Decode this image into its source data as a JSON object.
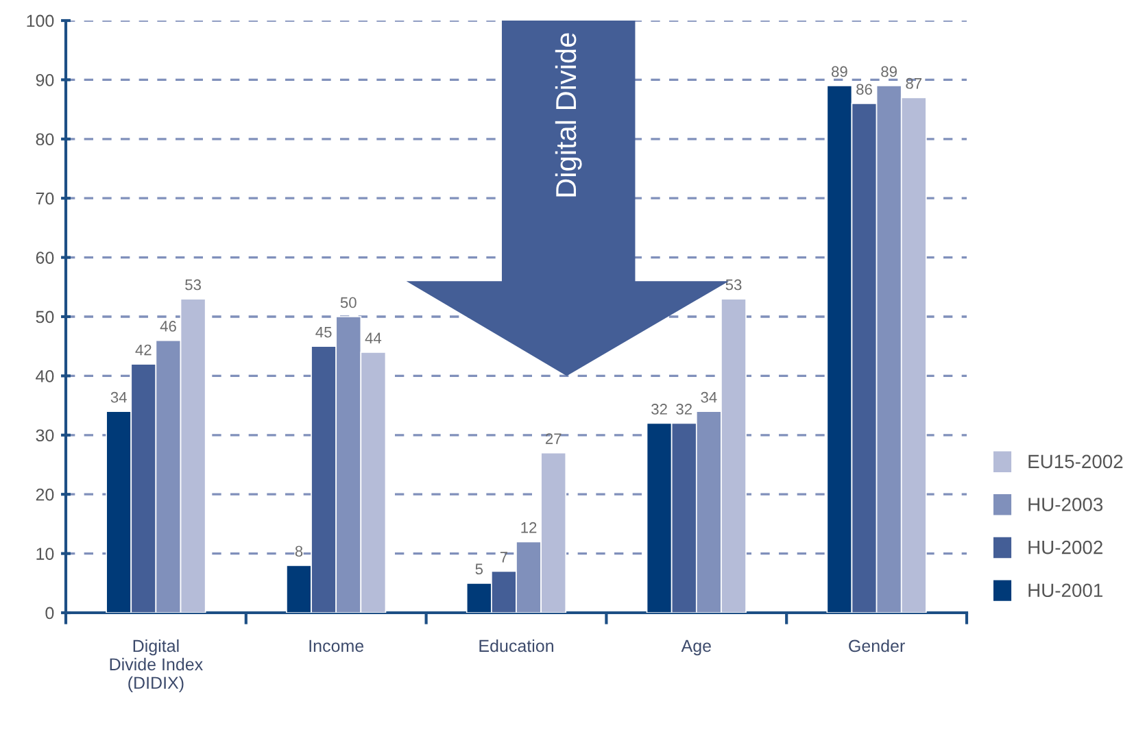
{
  "chart_data": {
    "type": "bar",
    "categories": [
      "Digital\nDivide Index\n(DIDIX)",
      "Income",
      "Education",
      "Age",
      "Gender"
    ],
    "series": [
      {
        "name": "HU-2001",
        "color": "#003a78",
        "values": [
          34,
          8,
          5,
          32,
          89
        ]
      },
      {
        "name": "HU-2002",
        "color": "#445e96",
        "values": [
          42,
          45,
          7,
          32,
          86
        ]
      },
      {
        "name": "HU-2003",
        "color": "#8090bb",
        "values": [
          46,
          50,
          12,
          34,
          89
        ]
      },
      {
        "name": "EU15-2002",
        "color": "#b5bcd8",
        "values": [
          53,
          44,
          27,
          53,
          87
        ]
      }
    ],
    "ylim": [
      0,
      100
    ],
    "yticks": [
      0,
      10,
      20,
      30,
      40,
      50,
      60,
      70,
      80,
      90,
      100
    ],
    "grid": "y",
    "legend": "right",
    "data_labels": true,
    "annotations": [
      "Digital Divide"
    ]
  }
}
